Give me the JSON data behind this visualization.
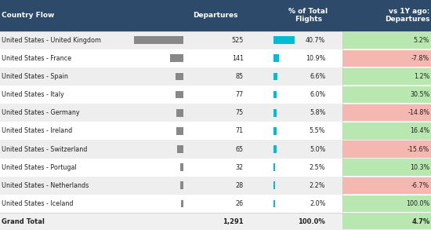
{
  "rows": [
    {
      "country": "United States - United Kingdom",
      "departures": 525,
      "pct": "40.7%",
      "vs1y": "5.2%",
      "vs1y_val": 5.2,
      "dep_bar": 1.0,
      "pct_bar": 1.0
    },
    {
      "country": "United States - France",
      "departures": 141,
      "pct": "10.9%",
      "vs1y": "-7.8%",
      "vs1y_val": -7.8,
      "dep_bar": 0.268,
      "pct_bar": 0.268
    },
    {
      "country": "United States - Spain",
      "departures": 85,
      "pct": "6.6%",
      "vs1y": "1.2%",
      "vs1y_val": 1.2,
      "dep_bar": 0.162,
      "pct_bar": 0.162
    },
    {
      "country": "United States - Italy",
      "departures": 77,
      "pct": "6.0%",
      "vs1y": "30.5%",
      "vs1y_val": 30.5,
      "dep_bar": 0.147,
      "pct_bar": 0.147
    },
    {
      "country": "United States - Germany",
      "departures": 75,
      "pct": "5.8%",
      "vs1y": "-14.8%",
      "vs1y_val": -14.8,
      "dep_bar": 0.143,
      "pct_bar": 0.143
    },
    {
      "country": "United States - Ireland",
      "departures": 71,
      "pct": "5.5%",
      "vs1y": "16.4%",
      "vs1y_val": 16.4,
      "dep_bar": 0.135,
      "pct_bar": 0.135
    },
    {
      "country": "United States - Switzerland",
      "departures": 65,
      "pct": "5.0%",
      "vs1y": "-15.6%",
      "vs1y_val": -15.6,
      "dep_bar": 0.124,
      "pct_bar": 0.124
    },
    {
      "country": "United States - Portugal",
      "departures": 32,
      "pct": "2.5%",
      "vs1y": "10.3%",
      "vs1y_val": 10.3,
      "dep_bar": 0.061,
      "pct_bar": 0.061
    },
    {
      "country": "United States - Netherlands",
      "departures": 28,
      "pct": "2.2%",
      "vs1y": "-6.7%",
      "vs1y_val": -6.7,
      "dep_bar": 0.053,
      "pct_bar": 0.053
    },
    {
      "country": "United States - Iceland",
      "departures": 26,
      "pct": "2.0%",
      "vs1y": "100.0%",
      "vs1y_val": 100.0,
      "dep_bar": 0.05,
      "pct_bar": 0.05
    }
  ],
  "grand_total": {
    "country": "Grand Total",
    "departures": "1,291",
    "pct": "100.0%",
    "vs1y": "4.7%",
    "vs1y_val": 4.7
  },
  "header_bg": "#2d4a6b",
  "header_fg": "#ffffff",
  "row_bg_even": "#eeeeee",
  "row_bg_odd": "#ffffff",
  "bar_dep_color": "#888888",
  "bar_pct_color": "#00bcd4",
  "pos_vs_color": "#b8e8b0",
  "neg_vs_color": "#f4b8b0",
  "title": "Country Flow",
  "col2": "Departures",
  "col3": "% of Total\nFlights",
  "col4": "vs 1Y ago:\nDepartures"
}
